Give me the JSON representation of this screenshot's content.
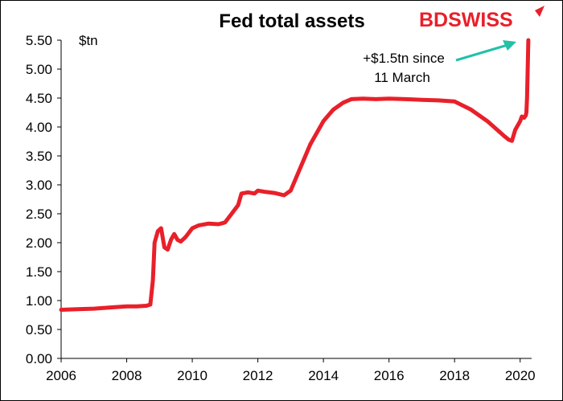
{
  "chart_data": {
    "type": "line",
    "title": "Fed total assets",
    "unit_label": "$tn",
    "xlim": [
      2006,
      2020.35
    ],
    "ylim": [
      0,
      5.5
    ],
    "x_ticks": [
      2006,
      2008,
      2010,
      2012,
      2014,
      2016,
      2018,
      2020
    ],
    "x_tick_labels": [
      "2006",
      "2008",
      "2010",
      "2012",
      "2014",
      "2016",
      "2018",
      "2020"
    ],
    "y_ticks": [
      0,
      0.5,
      1.0,
      1.5,
      2.0,
      2.5,
      3.0,
      3.5,
      4.0,
      4.5,
      5.0,
      5.5
    ],
    "y_tick_labels": [
      "0.00",
      "0.50",
      "1.00",
      "1.50",
      "2.00",
      "2.50",
      "3.00",
      "3.50",
      "4.00",
      "4.50",
      "5.00",
      "5.50"
    ],
    "grid": false,
    "legend": "none",
    "series": [
      {
        "color": "#e8202a",
        "x": [
          2006.0,
          2006.5,
          2007.0,
          2007.5,
          2008.0,
          2008.3,
          2008.6,
          2008.72,
          2008.8,
          2008.85,
          2008.95,
          2009.05,
          2009.15,
          2009.25,
          2009.35,
          2009.45,
          2009.55,
          2009.65,
          2009.8,
          2010.0,
          2010.2,
          2010.5,
          2010.8,
          2011.0,
          2011.2,
          2011.4,
          2011.5,
          2011.7,
          2011.9,
          2012.0,
          2012.2,
          2012.5,
          2012.8,
          2013.0,
          2013.3,
          2013.6,
          2014.0,
          2014.3,
          2014.6,
          2014.85,
          2015.2,
          2015.6,
          2016.0,
          2016.5,
          2017.0,
          2017.5,
          2018.0,
          2018.5,
          2019.0,
          2019.5,
          2019.65,
          2019.75,
          2019.85,
          2020.0,
          2020.05,
          2020.12,
          2020.17,
          2020.19,
          2020.21,
          2020.23,
          2020.25
        ],
        "values": [
          0.84,
          0.85,
          0.86,
          0.88,
          0.9,
          0.9,
          0.91,
          0.93,
          1.35,
          2.0,
          2.2,
          2.25,
          1.92,
          1.88,
          2.05,
          2.15,
          2.05,
          2.02,
          2.1,
          2.25,
          2.3,
          2.33,
          2.32,
          2.35,
          2.5,
          2.65,
          2.85,
          2.87,
          2.85,
          2.9,
          2.88,
          2.86,
          2.82,
          2.9,
          3.3,
          3.7,
          4.1,
          4.3,
          4.42,
          4.48,
          4.49,
          4.48,
          4.49,
          4.48,
          4.47,
          4.46,
          4.44,
          4.3,
          4.1,
          3.85,
          3.78,
          3.76,
          3.95,
          4.1,
          4.18,
          4.16,
          4.2,
          4.25,
          4.5,
          5.0,
          5.5
        ]
      }
    ],
    "annotation": {
      "lines": [
        "+$1.5tn since",
        "11 March"
      ],
      "arrow_color": "#22c1a8"
    }
  },
  "logo": {
    "part1": "BD",
    "part2": "SWISS",
    "part1_color": "#e8202a",
    "part2_color": "#e8202a"
  }
}
